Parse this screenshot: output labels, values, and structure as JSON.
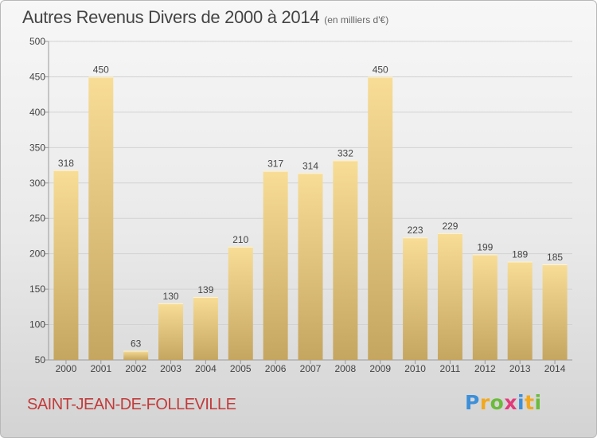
{
  "header": {
    "title": "Autres Revenus Divers de 2000 à 2014",
    "subtitle": "(en milliers d'€)"
  },
  "footer": {
    "commune": "SAINT-JEAN-DE-FOLLEVILLE",
    "logo": {
      "letters": [
        "P",
        "r",
        "o",
        "x",
        "i",
        "t",
        "i"
      ],
      "colors": [
        "#3c8fd9",
        "#f2a81d",
        "#6cbb3c",
        "#e23b7b",
        "#3c8fd9",
        "#f2a81d",
        "#6cbb3c"
      ]
    }
  },
  "chart_data": {
    "type": "bar",
    "title": "Autres Revenus Divers de 2000 à 2014",
    "subtitle": "(en milliers d'€)",
    "categories": [
      "2000",
      "2001",
      "2002",
      "2003",
      "2004",
      "2005",
      "2006",
      "2007",
      "2008",
      "2009",
      "2010",
      "2011",
      "2012",
      "2013",
      "2014"
    ],
    "values": [
      318,
      450,
      63,
      130,
      139,
      210,
      317,
      314,
      332,
      450,
      223,
      229,
      199,
      189,
      185
    ],
    "ylim": [
      50,
      500
    ],
    "yticks": [
      50,
      100,
      150,
      200,
      250,
      300,
      350,
      400,
      450,
      500
    ],
    "grid": true,
    "bar_colors": {
      "top": "#f8dd97",
      "bottom": "#c5a660"
    }
  }
}
